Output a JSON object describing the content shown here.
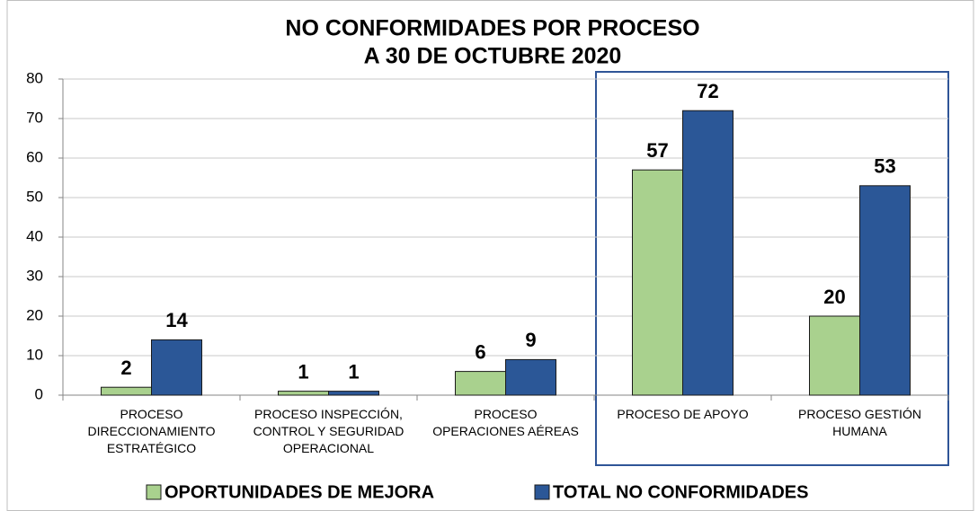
{
  "chart_data": {
    "type": "bar",
    "title": [
      "NO CONFORMIDADES POR PROCESO",
      "A 30 DE OCTUBRE 2020"
    ],
    "categories": [
      "PROCESO\nDIRECCIONAMIENTO\nESTRATÉGICO",
      "PROCESO INSPECCIÓN,\nCONTROL Y SEGURIDAD\nOPERACIONAL",
      "PROCESO\nOPERACIONES AÉREAS",
      "PROCESO DE APOYO",
      "PROCESO GESTIÓN\nHUMANA"
    ],
    "series": [
      {
        "name": "OPORTUNIDADES DE MEJORA",
        "color": "#a9d18e",
        "values": [
          2,
          1,
          6,
          57,
          20
        ]
      },
      {
        "name": "TOTAL NO CONFORMIDADES",
        "color": "#2b5797",
        "values": [
          14,
          1,
          9,
          72,
          53
        ]
      }
    ],
    "ylim": [
      0,
      80
    ],
    "yticks": [
      0,
      10,
      20,
      30,
      40,
      50,
      60,
      70,
      80
    ],
    "grid": true,
    "legend": "bottom"
  }
}
